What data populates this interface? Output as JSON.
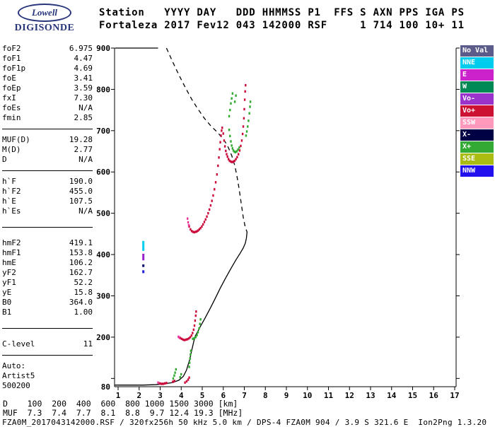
{
  "logo": {
    "brand": "Lowell",
    "product": "DIGISONDE"
  },
  "header": {
    "line1": "Station   YYYY DAY   DDD HHMMSS P1  FFS S AXN PPS IGA PS",
    "line2": "Fortaleza 2017 Fev12 043 142000 RSF     1 714 100 10+ 11"
  },
  "params": {
    "groups": [
      {
        "sep": "normal",
        "rows": [
          [
            "foF2",
            "6.975"
          ],
          [
            "foF1",
            "4.47"
          ],
          [
            "foF1p",
            "4.69"
          ],
          [
            "foE",
            "3.41"
          ],
          [
            "foEp",
            "3.59"
          ],
          [
            "fxI",
            "7.30"
          ],
          [
            "foEs",
            "N/A"
          ],
          [
            "fmin",
            "2.85"
          ]
        ]
      },
      {
        "sep": "normal",
        "rows": [
          [
            "MUF(D)",
            "19.28"
          ],
          [
            "M(D)",
            "2.77"
          ],
          [
            "D",
            "N/A"
          ]
        ]
      },
      {
        "sep": "large",
        "rows": [
          [
            "h`F",
            "190.0"
          ],
          [
            "h`F2",
            "455.0"
          ],
          [
            "h`E",
            "107.5"
          ],
          [
            "h`Es",
            "N/A"
          ]
        ]
      },
      {
        "sep": "large",
        "rows": [
          [
            "hmF2",
            "419.1"
          ],
          [
            "hmF1",
            "153.8"
          ],
          [
            "hmE",
            "106.2"
          ],
          [
            "yF2",
            "162.7"
          ],
          [
            "yF1",
            "52.2"
          ],
          [
            "yE",
            "15.8"
          ],
          [
            "B0",
            "364.0"
          ],
          [
            "B1",
            "1.00"
          ]
        ]
      },
      {
        "sep": "normal",
        "rows": [
          [
            "C-level",
            "11"
          ]
        ]
      }
    ],
    "footer": [
      "Auto:",
      "Artist5",
      "500200"
    ]
  },
  "legend": {
    "items": [
      {
        "label": "No Val",
        "color": "#5c5c8a"
      },
      {
        "label": "NNE",
        "color": "#00ccee"
      },
      {
        "label": "E",
        "color": "#cc22cc"
      },
      {
        "label": "W",
        "color": "#008855"
      },
      {
        "label": "Vo-",
        "color": "#9933cc"
      },
      {
        "label": "Vo+",
        "color": "#cc1133"
      },
      {
        "label": "SSW",
        "color": "#ff99bb"
      },
      {
        "label": "X-",
        "color": "#000044"
      },
      {
        "label": "X+",
        "color": "#33aa33"
      },
      {
        "label": "SSE",
        "color": "#aabb11"
      },
      {
        "label": "NNW",
        "color": "#2211ee"
      }
    ]
  },
  "chart_data": {
    "type": "scatter",
    "x_unit": "MHz",
    "y_unit": "km",
    "xlim": [
      1,
      17
    ],
    "ylim": [
      80,
      900
    ],
    "axes": {
      "x_ticks": [
        1,
        2,
        3,
        4,
        5,
        6,
        7,
        8,
        9,
        10,
        11,
        12,
        13,
        14,
        15,
        16,
        17
      ],
      "y_ticks": [
        100,
        200,
        300,
        400,
        500,
        600,
        700,
        800,
        900
      ],
      "y_tick_labels": [
        900,
        800,
        700,
        600,
        500,
        400,
        300,
        200
      ],
      "y_bottom_label": "80"
    },
    "traces": [
      {
        "name": "true-height-profile",
        "style": "line",
        "color": "#000000",
        "points": [
          [
            0.85,
            84
          ],
          [
            1.5,
            84
          ],
          [
            2.2,
            84
          ],
          [
            2.8,
            85
          ],
          [
            3.2,
            87
          ],
          [
            3.6,
            90
          ],
          [
            3.9,
            96
          ],
          [
            4.1,
            105
          ],
          [
            4.25,
            120
          ],
          [
            4.4,
            145
          ],
          [
            4.5,
            168
          ],
          [
            4.6,
            190
          ],
          [
            4.67,
            203
          ],
          [
            4.75,
            210
          ],
          [
            4.9,
            225
          ],
          [
            5.1,
            243
          ],
          [
            5.35,
            267
          ],
          [
            5.6,
            292
          ],
          [
            5.85,
            318
          ],
          [
            6.1,
            342
          ],
          [
            6.35,
            365
          ],
          [
            6.6,
            387
          ],
          [
            6.8,
            403
          ],
          [
            6.95,
            416
          ],
          [
            7.05,
            428
          ],
          [
            7.1,
            440
          ],
          [
            7.13,
            455
          ]
        ]
      },
      {
        "name": "profile-top-clip",
        "style": "line",
        "color": "#000000",
        "points": [
          [
            0.85,
            900
          ],
          [
            2.9,
            900
          ]
        ]
      },
      {
        "name": "profile-extrapolation",
        "style": "dashline",
        "color": "#000000",
        "points": [
          [
            3.3,
            900
          ],
          [
            3.6,
            866
          ],
          [
            3.9,
            834
          ],
          [
            4.2,
            804
          ],
          [
            4.5,
            776
          ],
          [
            4.8,
            752
          ],
          [
            5.1,
            730
          ],
          [
            5.4,
            712
          ],
          [
            5.7,
            697
          ],
          [
            5.9,
            686
          ],
          [
            6.1,
            672
          ],
          [
            6.25,
            658
          ],
          [
            6.4,
            640
          ],
          [
            6.55,
            615
          ],
          [
            6.65,
            590
          ],
          [
            6.75,
            560
          ],
          [
            6.85,
            525
          ],
          [
            6.95,
            490
          ],
          [
            7.05,
            465
          ],
          [
            7.13,
            455
          ]
        ]
      },
      {
        "name": "f-trace-omode",
        "style": "dots",
        "color": "#cc0a3a",
        "points": [
          [
            4.38,
            468
          ],
          [
            4.44,
            461
          ],
          [
            4.5,
            457
          ],
          [
            4.56,
            455
          ],
          [
            4.62,
            454
          ],
          [
            4.68,
            455
          ],
          [
            4.74,
            456
          ],
          [
            4.8,
            458
          ],
          [
            4.86,
            461
          ],
          [
            4.92,
            464
          ],
          [
            4.98,
            468
          ],
          [
            5.04,
            473
          ],
          [
            5.1,
            479
          ],
          [
            5.16,
            485
          ],
          [
            5.22,
            492
          ],
          [
            5.28,
            500
          ],
          [
            5.34,
            509
          ],
          [
            5.4,
            519
          ],
          [
            5.46,
            530
          ],
          [
            5.52,
            543
          ],
          [
            5.58,
            558
          ],
          [
            5.64,
            575
          ],
          [
            5.7,
            594
          ],
          [
            5.75,
            615
          ],
          [
            5.79,
            635
          ],
          [
            5.83,
            655
          ],
          [
            5.86,
            672
          ],
          [
            5.89,
            688
          ],
          [
            5.92,
            700
          ],
          [
            5.95,
            707
          ],
          [
            6.0,
            693
          ],
          [
            6.04,
            676
          ],
          [
            6.08,
            662
          ],
          [
            6.12,
            651
          ],
          [
            6.16,
            643
          ],
          [
            6.2,
            637
          ],
          [
            6.25,
            631
          ],
          [
            6.3,
            627
          ],
          [
            6.36,
            625
          ],
          [
            6.42,
            624
          ],
          [
            6.48,
            625
          ],
          [
            6.54,
            627
          ],
          [
            6.6,
            631
          ],
          [
            6.66,
            636
          ],
          [
            6.72,
            643
          ],
          [
            6.78,
            652
          ],
          [
            6.83,
            663
          ],
          [
            6.88,
            676
          ],
          [
            6.92,
            692
          ],
          [
            6.95,
            710
          ],
          [
            6.98,
            730
          ],
          [
            7.0,
            752
          ],
          [
            7.02,
            775
          ],
          [
            7.04,
            795
          ],
          [
            7.06,
            810
          ]
        ]
      },
      {
        "name": "f-trace-omode-lead",
        "style": "dots",
        "color": "#e8339b",
        "points": [
          [
            4.3,
            487
          ],
          [
            4.33,
            478
          ],
          [
            4.36,
            471
          ]
        ]
      },
      {
        "name": "f-trace-xmode",
        "style": "dots",
        "color": "#2faa2f",
        "points": [
          [
            6.28,
            702
          ],
          [
            6.32,
            687
          ],
          [
            6.36,
            674
          ],
          [
            6.4,
            664
          ],
          [
            6.44,
            657
          ],
          [
            6.48,
            652
          ],
          [
            6.53,
            649
          ],
          [
            6.58,
            648
          ],
          [
            6.64,
            650
          ],
          [
            6.7,
            654
          ],
          [
            6.76,
            659
          ],
          [
            6.28,
            735
          ],
          [
            6.32,
            750
          ],
          [
            6.36,
            766
          ],
          [
            6.4,
            778
          ],
          [
            6.44,
            790
          ],
          [
            6.55,
            770
          ],
          [
            6.6,
            785
          ],
          [
            7.08,
            688
          ],
          [
            7.12,
            698
          ],
          [
            7.16,
            710
          ],
          [
            7.2,
            724
          ],
          [
            7.24,
            742
          ],
          [
            7.27,
            758
          ],
          [
            7.29,
            770
          ]
        ]
      },
      {
        "name": "f1-trace-omode",
        "style": "dots",
        "color": "#cc0a3a",
        "points": [
          [
            3.95,
            198
          ],
          [
            4.02,
            196
          ],
          [
            4.09,
            194
          ],
          [
            4.16,
            193
          ],
          [
            4.23,
            194
          ],
          [
            4.3,
            195
          ],
          [
            4.37,
            197
          ],
          [
            4.43,
            200
          ],
          [
            4.49,
            204
          ],
          [
            4.54,
            210
          ],
          [
            4.59,
            218
          ],
          [
            4.63,
            228
          ],
          [
            4.66,
            240
          ],
          [
            4.69,
            252
          ],
          [
            4.71,
            262
          ]
        ]
      },
      {
        "name": "f1-trace-omode-lead",
        "style": "dots",
        "color": "#e8339b",
        "points": [
          [
            3.87,
            201
          ],
          [
            3.91,
            199
          ]
        ]
      },
      {
        "name": "f1-trace-xmode",
        "style": "dots",
        "color": "#2faa2f",
        "points": [
          [
            4.55,
            196
          ],
          [
            4.62,
            197
          ],
          [
            4.69,
            200
          ],
          [
            4.75,
            205
          ],
          [
            4.8,
            212
          ],
          [
            4.85,
            221
          ],
          [
            4.89,
            232
          ],
          [
            4.92,
            243
          ]
        ]
      },
      {
        "name": "f1-xmode-retardation",
        "style": "dots",
        "color": "#2faa2f",
        "points": [
          [
            4.38,
            128
          ],
          [
            4.4,
            138
          ],
          [
            4.42,
            148
          ],
          [
            4.44,
            158
          ],
          [
            4.46,
            167
          ]
        ]
      },
      {
        "name": "e-trace-omode",
        "style": "dots",
        "color": "#cc0a3a",
        "points": [
          [
            2.98,
            88
          ],
          [
            3.06,
            87
          ],
          [
            3.14,
            87
          ],
          [
            3.22,
            88
          ],
          [
            3.3,
            89
          ],
          [
            4.18,
            90
          ],
          [
            4.26,
            93
          ],
          [
            4.33,
            97
          ],
          [
            4.38,
            102
          ],
          [
            3.6,
            92
          ],
          [
            3.68,
            94
          ]
        ]
      },
      {
        "name": "e-trace-lead",
        "style": "dots",
        "color": "#e8339b",
        "points": [
          [
            2.9,
            90
          ]
        ]
      },
      {
        "name": "e-trace-xmode",
        "style": "dots",
        "color": "#2faa2f",
        "points": [
          [
            3.62,
            100
          ],
          [
            3.67,
            107
          ],
          [
            3.71,
            114
          ],
          [
            3.75,
            122
          ],
          [
            3.95,
            103
          ],
          [
            4.0,
            110
          ]
        ]
      },
      {
        "name": "velocity-bar-cyan",
        "style": "vbar",
        "color": "#00ccee",
        "points": [
          [
            2.2,
            409
          ],
          [
            2.2,
            433
          ]
        ]
      },
      {
        "name": "velocity-bar-purple",
        "style": "vbar",
        "color": "#9922cc",
        "points": [
          [
            2.2,
            386
          ],
          [
            2.2,
            402
          ]
        ]
      },
      {
        "name": "velocity-bar-navy",
        "style": "vbar",
        "color": "#000066",
        "points": [
          [
            2.2,
            370
          ],
          [
            2.2,
            376
          ]
        ]
      },
      {
        "name": "velocity-bar-blue",
        "style": "vbar",
        "color": "#2222dd",
        "points": [
          [
            2.2,
            355
          ],
          [
            2.2,
            362
          ]
        ]
      }
    ]
  },
  "dmuf": {
    "line1": "D    100  200  400  600  800 1000 1500 3000 [km]",
    "line2": "MUF  7.3  7.4  7.7  8.1  8.8  9.7 12.4 19.3 [MHz]"
  },
  "statusbar": "FZA0M_2017043142000.RSF / 320fx256h 50 kHz 5.0 km / DPS-4 FZA0M 904 / 3.9 S 321.6 E  Ion2Png 1.3.20"
}
